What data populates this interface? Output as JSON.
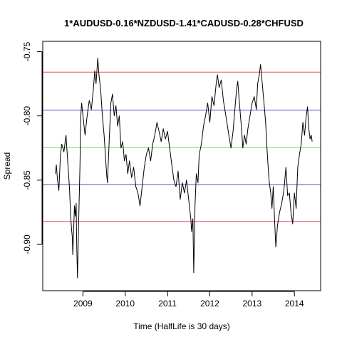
{
  "chart_data": {
    "type": "line",
    "title": "1*AUDUSD-0.16*NZDUSD-1.41*CADUSD-0.28*CHFUSD",
    "xlabel": "Time  (HalfLife is 30 days)",
    "ylabel": "Spread",
    "xlim": [
      2008.05,
      2014.62
    ],
    "ylim": [
      -0.936,
      -0.742
    ],
    "x_ticks": [
      2009,
      2010,
      2011,
      2012,
      2013,
      2014
    ],
    "x_tick_labels": [
      "2009",
      "2010",
      "2011",
      "2012",
      "2013",
      "2014"
    ],
    "y_ticks": [
      -0.9,
      -0.85,
      -0.8,
      -0.75
    ],
    "y_tick_labels": [
      "-0.90",
      "-0.85",
      "-0.80",
      "-0.75"
    ],
    "grid": false,
    "reference_lines": [
      {
        "y": -0.766,
        "color": "#e8505b"
      },
      {
        "y": -0.7955,
        "color": "#4a4ad4"
      },
      {
        "y": -0.8245,
        "color": "#5ce05c"
      },
      {
        "y": -0.8535,
        "color": "#4a4ad4"
      },
      {
        "y": -0.882,
        "color": "#e8505b"
      }
    ],
    "series": [
      {
        "color": "#000000",
        "points": [
          [
            2008.35,
            -0.845
          ],
          [
            2008.37,
            -0.838
          ],
          [
            2008.4,
            -0.85
          ],
          [
            2008.43,
            -0.858
          ],
          [
            2008.47,
            -0.83
          ],
          [
            2008.5,
            -0.822
          ],
          [
            2008.55,
            -0.828
          ],
          [
            2008.6,
            -0.815
          ],
          [
            2008.64,
            -0.835
          ],
          [
            2008.68,
            -0.855
          ],
          [
            2008.71,
            -0.878
          ],
          [
            2008.73,
            -0.888
          ],
          [
            2008.75,
            -0.895
          ],
          [
            2008.76,
            -0.908
          ],
          [
            2008.78,
            -0.89
          ],
          [
            2008.8,
            -0.87
          ],
          [
            2008.82,
            -0.878
          ],
          [
            2008.84,
            -0.868
          ],
          [
            2008.85,
            -0.895
          ],
          [
            2008.87,
            -0.926
          ],
          [
            2008.9,
            -0.88
          ],
          [
            2008.93,
            -0.84
          ],
          [
            2008.95,
            -0.8
          ],
          [
            2008.97,
            -0.79
          ],
          [
            2009.0,
            -0.8
          ],
          [
            2009.05,
            -0.815
          ],
          [
            2009.1,
            -0.8
          ],
          [
            2009.15,
            -0.788
          ],
          [
            2009.2,
            -0.795
          ],
          [
            2009.25,
            -0.778
          ],
          [
            2009.28,
            -0.765
          ],
          [
            2009.31,
            -0.775
          ],
          [
            2009.35,
            -0.755
          ],
          [
            2009.38,
            -0.768
          ],
          [
            2009.42,
            -0.78
          ],
          [
            2009.46,
            -0.8
          ],
          [
            2009.5,
            -0.815
          ],
          [
            2009.53,
            -0.83
          ],
          [
            2009.56,
            -0.845
          ],
          [
            2009.58,
            -0.852
          ],
          [
            2009.62,
            -0.82
          ],
          [
            2009.66,
            -0.79
          ],
          [
            2009.7,
            -0.783
          ],
          [
            2009.74,
            -0.8
          ],
          [
            2009.78,
            -0.792
          ],
          [
            2009.82,
            -0.808
          ],
          [
            2009.86,
            -0.8
          ],
          [
            2009.9,
            -0.825
          ],
          [
            2009.94,
            -0.82
          ],
          [
            2009.98,
            -0.835
          ],
          [
            2010.02,
            -0.83
          ],
          [
            2010.06,
            -0.845
          ],
          [
            2010.1,
            -0.835
          ],
          [
            2010.15,
            -0.848
          ],
          [
            2010.2,
            -0.84
          ],
          [
            2010.25,
            -0.855
          ],
          [
            2010.3,
            -0.86
          ],
          [
            2010.35,
            -0.87
          ],
          [
            2010.4,
            -0.855
          ],
          [
            2010.45,
            -0.84
          ],
          [
            2010.5,
            -0.83
          ],
          [
            2010.55,
            -0.825
          ],
          [
            2010.6,
            -0.835
          ],
          [
            2010.65,
            -0.822
          ],
          [
            2010.7,
            -0.815
          ],
          [
            2010.75,
            -0.805
          ],
          [
            2010.8,
            -0.812
          ],
          [
            2010.85,
            -0.82
          ],
          [
            2010.9,
            -0.81
          ],
          [
            2010.95,
            -0.818
          ],
          [
            2011.0,
            -0.812
          ],
          [
            2011.05,
            -0.825
          ],
          [
            2011.1,
            -0.838
          ],
          [
            2011.15,
            -0.85
          ],
          [
            2011.2,
            -0.855
          ],
          [
            2011.25,
            -0.843
          ],
          [
            2011.3,
            -0.865
          ],
          [
            2011.35,
            -0.852
          ],
          [
            2011.4,
            -0.86
          ],
          [
            2011.45,
            -0.85
          ],
          [
            2011.5,
            -0.865
          ],
          [
            2011.55,
            -0.88
          ],
          [
            2011.57,
            -0.89
          ],
          [
            2011.6,
            -0.88
          ],
          [
            2011.62,
            -0.922
          ],
          [
            2011.65,
            -0.87
          ],
          [
            2011.68,
            -0.845
          ],
          [
            2011.72,
            -0.852
          ],
          [
            2011.75,
            -0.83
          ],
          [
            2011.8,
            -0.822
          ],
          [
            2011.85,
            -0.808
          ],
          [
            2011.9,
            -0.8
          ],
          [
            2011.95,
            -0.79
          ],
          [
            2012.0,
            -0.805
          ],
          [
            2012.05,
            -0.785
          ],
          [
            2012.1,
            -0.792
          ],
          [
            2012.15,
            -0.775
          ],
          [
            2012.18,
            -0.768
          ],
          [
            2012.22,
            -0.778
          ],
          [
            2012.27,
            -0.772
          ],
          [
            2012.32,
            -0.788
          ],
          [
            2012.38,
            -0.8
          ],
          [
            2012.45,
            -0.815
          ],
          [
            2012.5,
            -0.825
          ],
          [
            2012.55,
            -0.812
          ],
          [
            2012.6,
            -0.792
          ],
          [
            2012.63,
            -0.78
          ],
          [
            2012.66,
            -0.773
          ],
          [
            2012.7,
            -0.79
          ],
          [
            2012.75,
            -0.81
          ],
          [
            2012.78,
            -0.825
          ],
          [
            2012.82,
            -0.815
          ],
          [
            2012.86,
            -0.822
          ],
          [
            2012.9,
            -0.81
          ],
          [
            2012.95,
            -0.8
          ],
          [
            2013.0,
            -0.79
          ],
          [
            2013.05,
            -0.785
          ],
          [
            2013.1,
            -0.795
          ],
          [
            2013.13,
            -0.775
          ],
          [
            2013.17,
            -0.768
          ],
          [
            2013.2,
            -0.76
          ],
          [
            2013.24,
            -0.775
          ],
          [
            2013.28,
            -0.79
          ],
          [
            2013.32,
            -0.805
          ],
          [
            2013.36,
            -0.83
          ],
          [
            2013.4,
            -0.85
          ],
          [
            2013.44,
            -0.86
          ],
          [
            2013.47,
            -0.872
          ],
          [
            2013.5,
            -0.855
          ],
          [
            2013.53,
            -0.88
          ],
          [
            2013.56,
            -0.902
          ],
          [
            2013.6,
            -0.885
          ],
          [
            2013.65,
            -0.875
          ],
          [
            2013.7,
            -0.868
          ],
          [
            2013.75,
            -0.858
          ],
          [
            2013.8,
            -0.84
          ],
          [
            2013.84,
            -0.862
          ],
          [
            2013.88,
            -0.86
          ],
          [
            2013.92,
            -0.875
          ],
          [
            2013.96,
            -0.884
          ],
          [
            2014.0,
            -0.86
          ],
          [
            2014.04,
            -0.872
          ],
          [
            2014.08,
            -0.84
          ],
          [
            2014.12,
            -0.83
          ],
          [
            2014.16,
            -0.822
          ],
          [
            2014.2,
            -0.805
          ],
          [
            2014.24,
            -0.815
          ],
          [
            2014.28,
            -0.8
          ],
          [
            2014.31,
            -0.793
          ],
          [
            2014.34,
            -0.81
          ],
          [
            2014.37,
            -0.818
          ],
          [
            2014.4,
            -0.815
          ],
          [
            2014.42,
            -0.82
          ]
        ]
      }
    ]
  }
}
